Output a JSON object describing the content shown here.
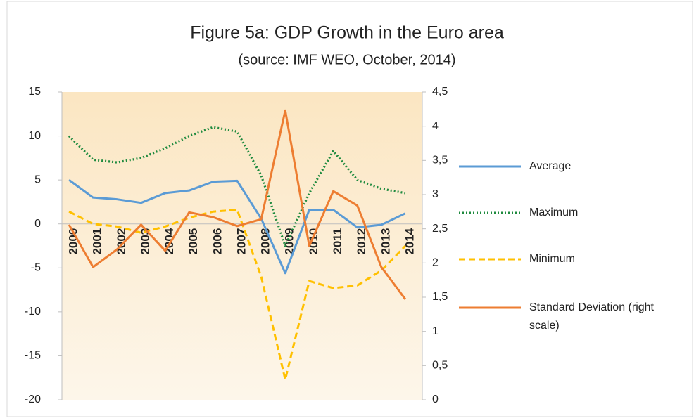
{
  "chart_data": {
    "type": "line",
    "title": "Figure 5a: GDP  Growth  in the Euro area",
    "subtitle": "(source: IMF WEO, October, 2014)",
    "categories": [
      "2000",
      "2001",
      "2002",
      "2003",
      "2004",
      "2005",
      "2006",
      "2007",
      "2008",
      "2009",
      "2010",
      "2011",
      "2012",
      "2013",
      "2014"
    ],
    "series": [
      {
        "name": "Average",
        "color": "#5b9bd5",
        "style": "solid",
        "values": [
          5.0,
          3.0,
          2.8,
          2.4,
          3.5,
          3.8,
          4.8,
          4.9,
          0.6,
          -5.6,
          1.6,
          1.6,
          -0.4,
          -0.1,
          1.2
        ]
      },
      {
        "name": "Maximum",
        "color": "#1e8a3e",
        "style": "dotted",
        "values": [
          10.0,
          7.3,
          7.0,
          7.5,
          8.6,
          10.0,
          11.0,
          10.5,
          5.5,
          -2.5,
          3.5,
          8.3,
          5.0,
          4.0,
          3.5
        ]
      },
      {
        "name": "Minimum",
        "color": "#ffc000",
        "style": "dashed",
        "values": [
          1.4,
          0.0,
          -0.3,
          -1.0,
          -0.3,
          0.7,
          1.4,
          1.6,
          -6.0,
          -17.7,
          -6.5,
          -7.3,
          -7.0,
          -5.3,
          -2.5
        ]
      },
      {
        "name": "Standard Deviation (right scale)",
        "color": "#ed7d31",
        "style": "solid",
        "axis": "y2",
        "values": [
          2.56,
          1.94,
          2.2,
          2.56,
          2.18,
          2.74,
          2.67,
          2.54,
          2.64,
          4.23,
          2.25,
          3.05,
          2.84,
          1.94,
          1.47
        ]
      }
    ],
    "ylim": [
      -20,
      15
    ],
    "yticks": [
      -20,
      -15,
      -10,
      -5,
      0,
      5,
      10,
      15
    ],
    "y2lim": [
      0,
      4.5
    ],
    "y2ticks": [
      0,
      {
        "value": 0.5,
        "label": "0,5"
      },
      1,
      {
        "value": 1.5,
        "label": "1,5"
      },
      2,
      {
        "value": 2.5,
        "label": "2,5"
      },
      3,
      {
        "value": 3.5,
        "label": "3,5"
      },
      4,
      {
        "value": 4.5,
        "label": "4,5"
      }
    ],
    "legend": "right"
  }
}
